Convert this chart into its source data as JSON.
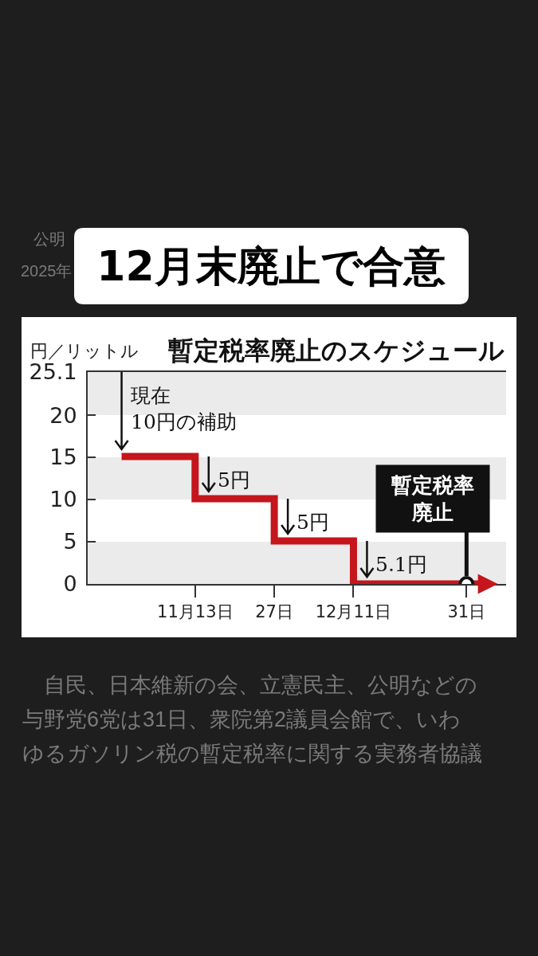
{
  "chart_data": {
    "type": "step",
    "title": "12月末廃止で合意",
    "subtitle": "暫定税率廃止のスケジュール",
    "ylabel": "円／リットル",
    "x": [
      "2025-10-31",
      "2025-11-13",
      "2025-11-27",
      "2025-12-11",
      "2026-01-03"
    ],
    "series": [
      {
        "color": "#c4161c",
        "values": [
          15.1,
          10.1,
          5.1,
          0,
          0
        ]
      }
    ],
    "xlim": [
      "2025-10-25",
      "2026-01-07"
    ],
    "xticks": [
      {
        "value": "2025-11-13",
        "label": "11月13日"
      },
      {
        "value": "2025-11-27",
        "label": "27日"
      },
      {
        "value": "2025-12-11",
        "label": "12月11日"
      },
      {
        "value": "2025-12-31",
        "label": "31日"
      }
    ],
    "ylim": [
      0,
      25.1
    ],
    "yticks": [
      0,
      5,
      10,
      15,
      20,
      25.1
    ],
    "bands": [
      {
        "axis": "y",
        "from": 0,
        "to": 5,
        "color": "#ebebeb"
      },
      {
        "axis": "y",
        "from": 10,
        "to": 15,
        "color": "#ebebeb"
      },
      {
        "axis": "y",
        "from": 20,
        "to": 25.1,
        "color": "#ebebeb"
      }
    ],
    "annotations": [
      {
        "text": "現在\n10円の補助",
        "x": "2025-10-31",
        "y": 15.1
      },
      {
        "text": "5円",
        "x": "2025-11-13",
        "y": 10.1
      },
      {
        "text": "5円",
        "x": "2025-11-27",
        "y": 5.1
      },
      {
        "text": "5.1円",
        "x": "2025-12-11",
        "y": 0
      },
      {
        "text": "暫定税率廃止",
        "x": "2025-12-31",
        "y": 0
      },
      "公明",
      "2025年",
      "　自民、日本維新の会、立憲民主、公明などの与野党6党は31日、衆院第2議員会館で、いわゆるガソリン税の暫定税率に関する実務者協議"
    ]
  }
}
